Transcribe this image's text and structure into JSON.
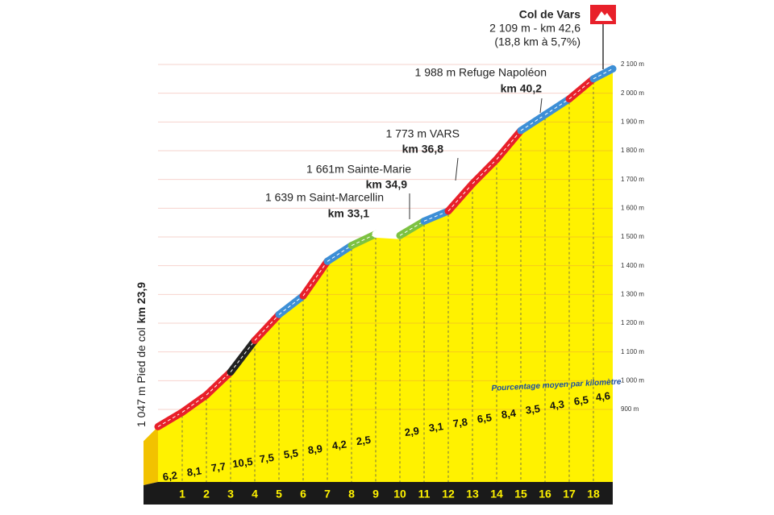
{
  "chart_data": {
    "type": "area",
    "annotations": [
      {
        "lines": [
          "Col de Vars",
          "2 109 m - km 42,6",
          "(18,8 km à 5,7%)"
        ]
      },
      {
        "lines": [
          "1 988 m Refuge Napoléon",
          "km 40,2"
        ]
      },
      {
        "lines": [
          "1 773 m VARS",
          "km 36,8"
        ]
      },
      {
        "lines": [
          "1 661m Sainte-Marie",
          "km 34,9"
        ]
      },
      {
        "lines": [
          "1 639 m Saint-Marcellin",
          "km 33,1"
        ]
      }
    ],
    "start_label": [
      "1 047 m Pied de col",
      "km 23,9"
    ],
    "note": "Pourcentage moyen par kilomètre",
    "x": [
      0,
      1,
      2,
      3,
      4,
      5,
      6,
      7,
      8,
      9,
      10,
      11,
      12,
      13,
      14,
      15,
      16,
      17,
      18,
      18.8
    ],
    "values": [
      840,
      890,
      950,
      1030,
      1140,
      1230,
      1295,
      1415,
      1470,
      1510,
      1505,
      1555,
      1590,
      1685,
      1770,
      1870,
      1925,
      1980,
      2050,
      2085
    ],
    "color": "#fff200",
    "gradients": {
      "values": [
        6.2,
        8.1,
        7.7,
        10.5,
        7.5,
        5.5,
        8.9,
        4.2,
        2.5,
        null,
        2.9,
        3.1,
        7.8,
        6.5,
        8.4,
        3.5,
        4.3,
        6.5,
        4.6
      ],
      "value_labels": [
        "6,2",
        "8,1",
        "7,7",
        "10,5",
        "7,5",
        "5,5",
        "8,9",
        "4,2",
        "2,5",
        null,
        "2,9",
        "3,1",
        "7,8",
        "6,5",
        "8,4",
        "3,5",
        "4,3",
        "6,5",
        "4,6"
      ],
      "colors": [
        "#e8202a",
        "#e8202a",
        "#e8202a",
        "#222222",
        "#e8202a",
        "#3d8fd6",
        "#e8202a",
        "#3d8fd6",
        "#7dc242",
        "#ffffff",
        "#7dc242",
        "#3d8fd6",
        "#e8202a",
        "#e8202a",
        "#e8202a",
        "#3d8fd6",
        "#3d8fd6",
        "#e8202a",
        "#3d8fd6"
      ]
    },
    "xlim": [
      0,
      18.8
    ],
    "xticks": [
      1,
      2,
      3,
      4,
      5,
      6,
      7,
      8,
      9,
      10,
      11,
      12,
      13,
      14,
      15,
      16,
      17,
      18
    ],
    "ylim": [
      900,
      2100
    ],
    "yticks": [
      {
        "value": 900,
        "label": "900 m"
      },
      {
        "value": 1000,
        "label": "1 000 m"
      },
      {
        "value": 1100,
        "label": "1 100 m"
      },
      {
        "value": 1200,
        "label": "1 200 m"
      },
      {
        "value": 1300,
        "label": "1 300 m"
      },
      {
        "value": 1400,
        "label": "1 400 m"
      },
      {
        "value": 1500,
        "label": "1 500 m"
      },
      {
        "value": 1600,
        "label": "1 600 m"
      },
      {
        "value": 1700,
        "label": "1 700 m"
      },
      {
        "value": 1800,
        "label": "1 800 m"
      },
      {
        "value": 1900,
        "label": "1 900 m"
      },
      {
        "value": 2000,
        "label": "2 000 m"
      },
      {
        "value": 2100,
        "label": "2 100 m"
      }
    ],
    "grid": true
  }
}
